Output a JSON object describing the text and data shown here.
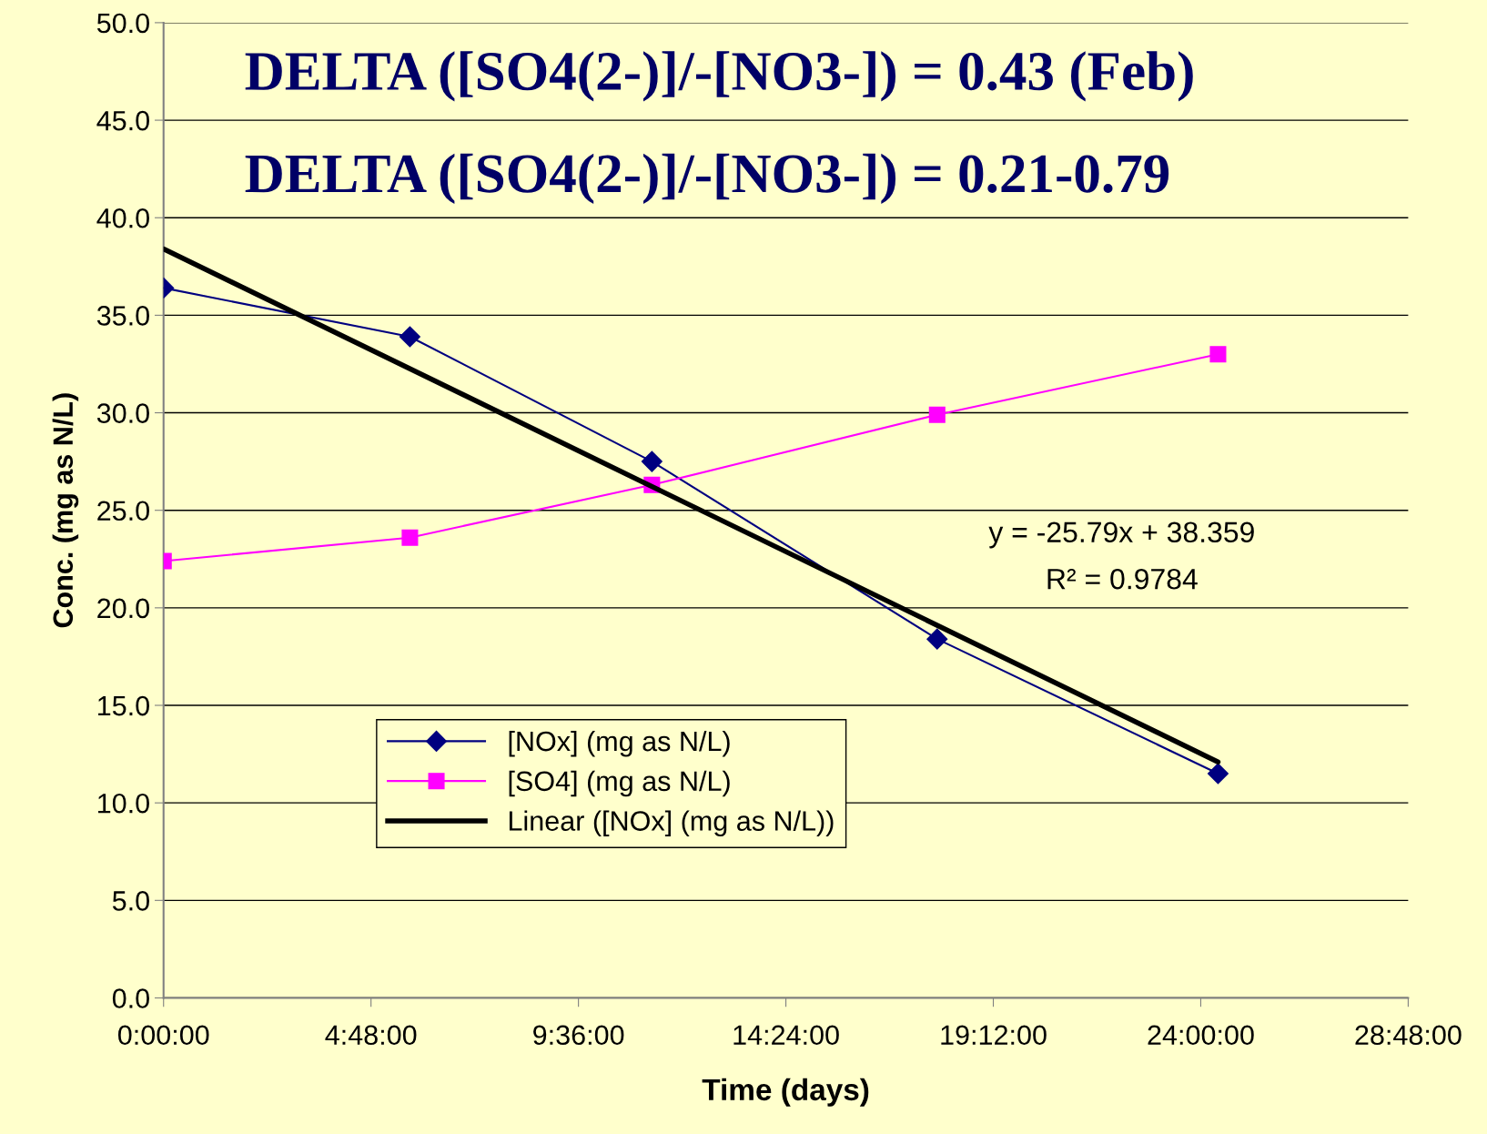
{
  "chart_data": {
    "type": "line",
    "xlabel": "Time (days)",
    "ylabel": "Conc. (mg as N/L)",
    "xlim": [
      0,
      28.8
    ],
    "xticks": [
      {
        "value": 0,
        "label": "0:00:00"
      },
      {
        "value": 4.8,
        "label": "4:48:00"
      },
      {
        "value": 9.6,
        "label": "9:36:00"
      },
      {
        "value": 14.4,
        "label": "14:24:00"
      },
      {
        "value": 19.2,
        "label": "19:12:00"
      },
      {
        "value": 24,
        "label": "24:00:00"
      },
      {
        "value": 28.8,
        "label": "28:48:00"
      }
    ],
    "ylim": [
      0,
      50
    ],
    "yticks": [
      {
        "value": 0,
        "label": "0.0"
      },
      {
        "value": 5,
        "label": "5.0"
      },
      {
        "value": 10,
        "label": "10.0"
      },
      {
        "value": 15,
        "label": "15.0"
      },
      {
        "value": 20,
        "label": "20.0"
      },
      {
        "value": 25,
        "label": "25.0"
      },
      {
        "value": 30,
        "label": "30.0"
      },
      {
        "value": 35,
        "label": "35.0"
      },
      {
        "value": 40,
        "label": "40.0"
      },
      {
        "value": 45,
        "label": "45.0"
      },
      {
        "value": 50,
        "label": "50.0"
      }
    ],
    "grid": "y",
    "legend": "bottom left",
    "series": [
      {
        "name": "[NOx] (mg as N/L)",
        "color": "#000080",
        "marker": "diamond",
        "x": [
          0,
          5.7,
          11.3,
          17.9,
          24.4
        ],
        "values": [
          36.4,
          33.9,
          27.5,
          18.4,
          11.5
        ]
      },
      {
        "name": "[SO4] (mg as N/L)",
        "color": "#ff00ff",
        "marker": "square",
        "x": [
          0,
          5.7,
          11.3,
          17.9,
          24.4
        ],
        "values": [
          22.4,
          23.6,
          26.3,
          29.9,
          33.0
        ]
      },
      {
        "name": "Linear ([NOx] (mg as N/L))",
        "color": "#000000",
        "marker": "none",
        "x": [
          0,
          24.4
        ],
        "values": [
          38.4,
          12.1
        ]
      }
    ],
    "annotations": [
      "DELTA ([SO4(2-)]/-[NO3-]) = 0.43 (Feb)",
      "DELTA ([SO4(2-)]/-[NO3-]) = 0.21-0.79",
      "y = -25.79x + 38.359",
      "R² = 0.9784"
    ]
  }
}
